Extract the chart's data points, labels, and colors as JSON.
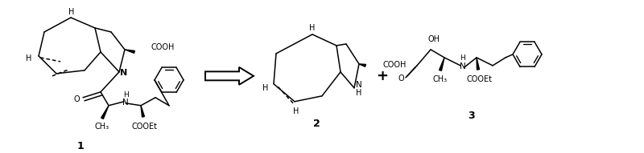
{
  "background_color": "#ffffff",
  "fig_width": 8.0,
  "fig_height": 1.91,
  "dpi": 100,
  "lw": 1.1,
  "compound1_label": "1",
  "compound2_label": "2",
  "compound3_label": "3"
}
